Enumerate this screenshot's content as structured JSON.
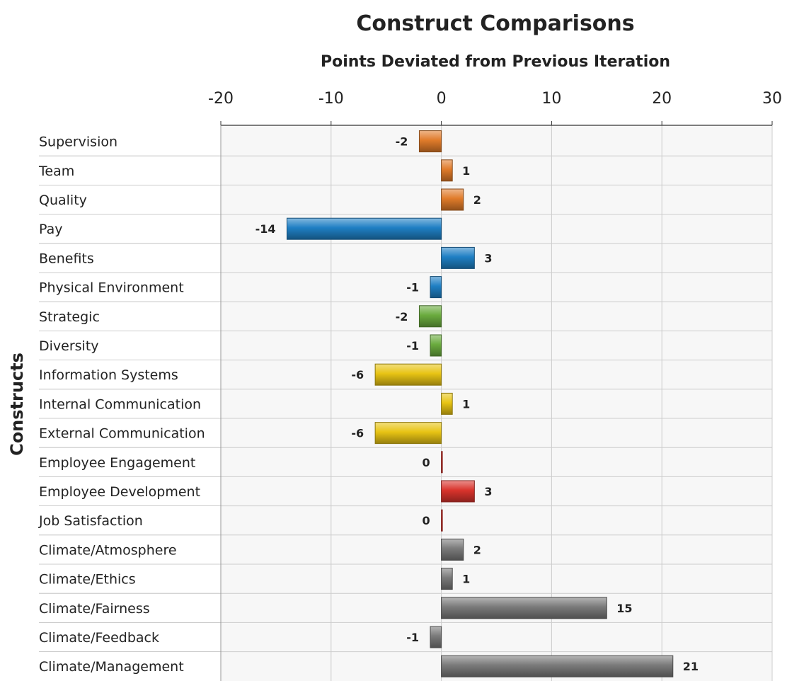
{
  "chart_data": {
    "type": "bar",
    "orientation": "horizontal",
    "title": "Construct Comparisons",
    "subtitle": "Points Deviated from Previous Iteration",
    "ylabel": "Constructs",
    "xlabel": "",
    "xlim": [
      -20,
      30
    ],
    "xticks": [
      -20,
      -10,
      0,
      10,
      20,
      30
    ],
    "x_axis_position": "top",
    "grid": true,
    "legend": "none",
    "categories": [
      "Supervision",
      "Team",
      "Quality",
      "Pay",
      "Benefits",
      "Physical Environment",
      "Strategic",
      "Diversity",
      "Information Systems",
      "Internal Communication",
      "External Communication",
      "Employee Engagement",
      "Employee Development",
      "Job Satisfaction",
      "Climate/Atmosphere",
      "Climate/Ethics",
      "Climate/Fairness",
      "Climate/Feedback",
      "Climate/Management"
    ],
    "values": [
      -2,
      1,
      2,
      -14,
      3,
      -1,
      -2,
      -1,
      -6,
      1,
      -6,
      0,
      3,
      0,
      2,
      1,
      15,
      -1,
      21
    ],
    "value_labels": [
      "-2",
      "1",
      "2",
      "-14",
      "3",
      "-1",
      "-2",
      "-1",
      "-6",
      "1",
      "-6",
      "0",
      "3",
      "0",
      "2",
      "1",
      "15",
      "-1",
      "21"
    ],
    "bar_colors": [
      "#e07b2a",
      "#e07b2a",
      "#e07b2a",
      "#1f7fc4",
      "#1f7fc4",
      "#1f7fc4",
      "#6aab3e",
      "#6aab3e",
      "#e8c414",
      "#e8c414",
      "#e8c414",
      "#d9332c",
      "#d9332c",
      "#d9332c",
      "#7a7a7a",
      "#7a7a7a",
      "#7a7a7a",
      "#7a7a7a",
      "#7a7a7a"
    ],
    "colors": {
      "plot_background": "#f7f7f7",
      "grid": "#cccccc",
      "title_text": "#222222",
      "label_text": "#222222"
    }
  }
}
